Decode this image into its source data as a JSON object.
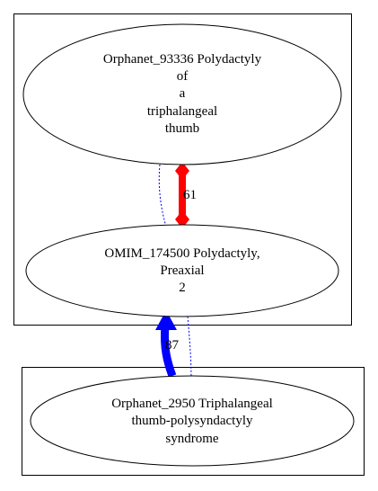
{
  "nodes": {
    "orphanet_93336": {
      "lines": [
        "Orphanet_93336 Polydactyly",
        "of",
        "a",
        "triphalangeal",
        "thumb"
      ]
    },
    "omim_174500": {
      "lines": [
        "OMIM_174500 Polydactyly,",
        "Preaxial",
        "2"
      ]
    },
    "orphanet_2950": {
      "lines": [
        "Orphanet_2950 Triphalangeal",
        "thumb-polysyndactyly",
        "syndrome"
      ]
    }
  },
  "edges": {
    "red_edge": {
      "label": "61",
      "color": "#ff0000"
    },
    "blue_edge": {
      "label": "87",
      "color": "#0000ff"
    },
    "dotted_color": "#0000ff"
  }
}
